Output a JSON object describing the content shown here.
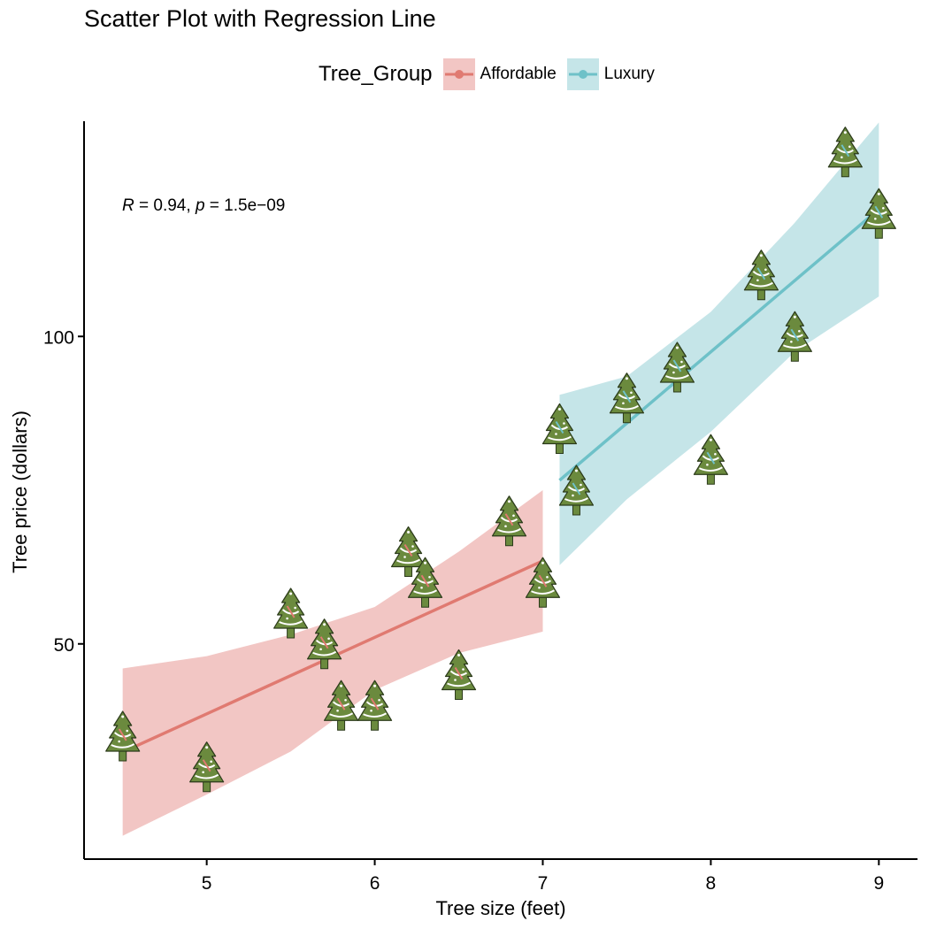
{
  "chart_data": {
    "type": "scatter",
    "title": "Scatter Plot with Regression Line",
    "xlabel": "Tree size (feet)",
    "ylabel": "Tree price (dollars)",
    "xlim": [
      4.27,
      9.23
    ],
    "ylim": [
      15,
      135
    ],
    "x_ticks": [
      5,
      6,
      7,
      8,
      9
    ],
    "y_ticks": [
      50,
      100
    ],
    "x_tick_labels": [
      "5",
      "6",
      "7",
      "8",
      "9"
    ],
    "y_tick_labels": [
      "50",
      "100"
    ],
    "legend": {
      "title": "Tree_Group",
      "position": "top",
      "entries": [
        {
          "name": "Affordable",
          "color": "#E07A71",
          "ribbon": "#F2C6C4"
        },
        {
          "name": "Luxury",
          "color": "#6EC1C8",
          "ribbon": "#C5E5E8"
        }
      ]
    },
    "annotation": {
      "r_label": "R",
      "r_eq": " = 0.94, ",
      "p_label": "p",
      "p_eq": " = 1.5e−09"
    },
    "marker_color": "#6B8A3E",
    "series": [
      {
        "name": "Affordable",
        "points": [
          {
            "x": 4.5,
            "y": 35
          },
          {
            "x": 5.0,
            "y": 30
          },
          {
            "x": 5.5,
            "y": 55
          },
          {
            "x": 5.7,
            "y": 50
          },
          {
            "x": 5.8,
            "y": 40
          },
          {
            "x": 6.0,
            "y": 40
          },
          {
            "x": 6.2,
            "y": 65
          },
          {
            "x": 6.3,
            "y": 60
          },
          {
            "x": 6.5,
            "y": 45
          },
          {
            "x": 6.8,
            "y": 70
          },
          {
            "x": 7.0,
            "y": 60
          }
        ],
        "fit": {
          "x": [
            4.5,
            7.0
          ],
          "y": [
            32.4,
            63.5
          ]
        },
        "ci": {
          "x": [
            4.5,
            5.0,
            5.5,
            6.0,
            6.5,
            7.0
          ],
          "lower": [
            18.8,
            25.5,
            32.5,
            42.5,
            48.5,
            52.0
          ],
          "upper": [
            46.0,
            48.0,
            51.5,
            56.0,
            65.0,
            75.0
          ]
        }
      },
      {
        "name": "Luxury",
        "points": [
          {
            "x": 7.1,
            "y": 85
          },
          {
            "x": 7.2,
            "y": 75
          },
          {
            "x": 7.5,
            "y": 90
          },
          {
            "x": 7.8,
            "y": 95
          },
          {
            "x": 8.0,
            "y": 80
          },
          {
            "x": 8.3,
            "y": 110
          },
          {
            "x": 8.5,
            "y": 100
          },
          {
            "x": 8.8,
            "y": 130
          },
          {
            "x": 9.0,
            "y": 120
          }
        ],
        "fit": {
          "x": [
            7.1,
            9.0
          ],
          "y": [
            76.6,
            120.7
          ]
        },
        "ci": {
          "x": [
            7.1,
            7.5,
            8.0,
            8.5,
            9.0
          ],
          "lower": [
            62.8,
            73.5,
            84.5,
            97.5,
            106.5
          ],
          "upper": [
            90.5,
            93.5,
            104.0,
            118.5,
            134.8
          ]
        }
      }
    ]
  }
}
